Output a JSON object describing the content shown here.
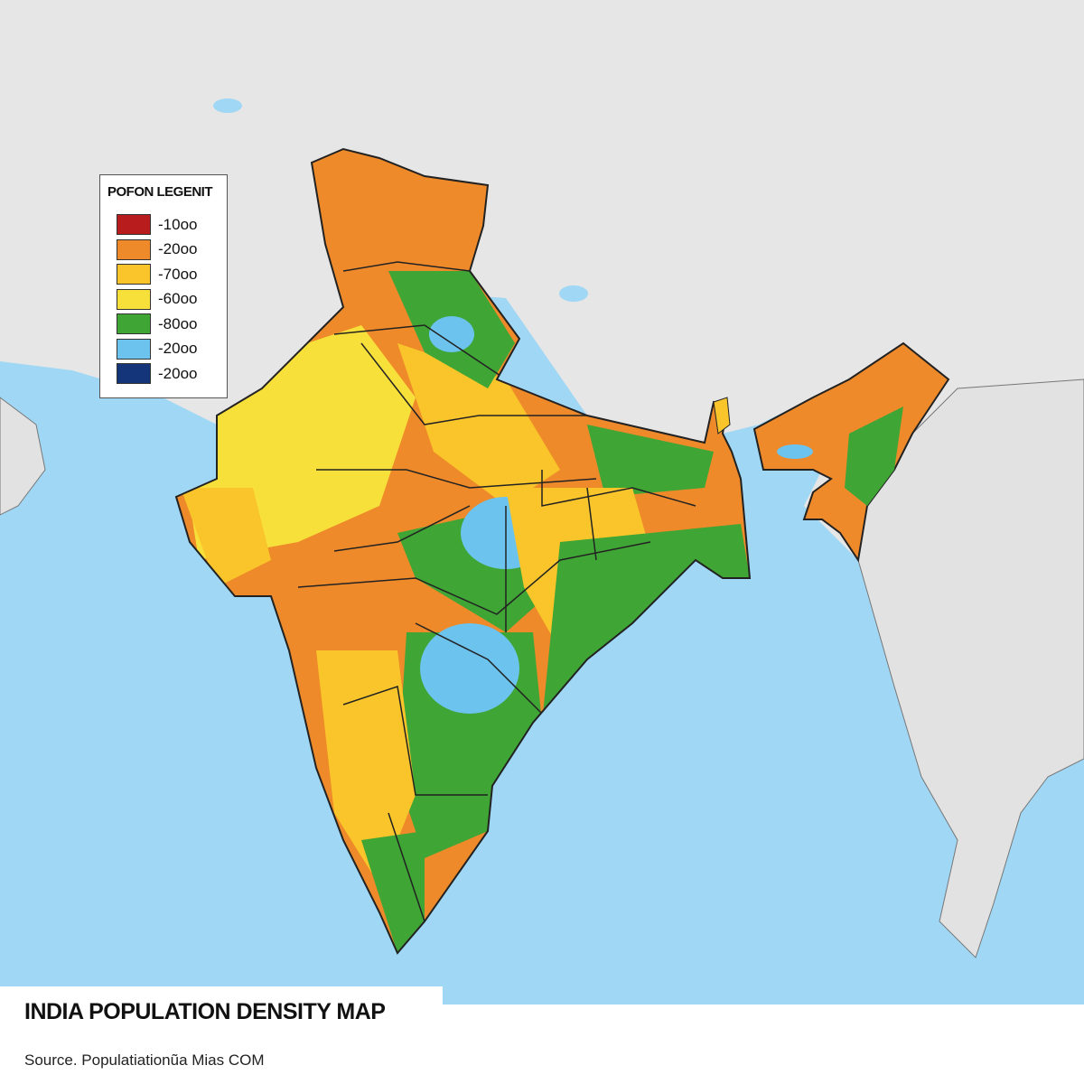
{
  "map": {
    "title": "INDIA POPULATION DENSITY MAP",
    "source": "Source. Populatiationũa Mias COM",
    "colors": {
      "sea": "#9fd7f5",
      "land": "#e4e4e4",
      "border": "#222222"
    }
  },
  "legend": {
    "title": "POFON LEGENIT",
    "items": [
      {
        "label": "-10oo",
        "color": "#b81c1c"
      },
      {
        "label": "-20oo",
        "color": "#ee8a2a"
      },
      {
        "label": "-70oo",
        "color": "#f9c52a"
      },
      {
        "label": "-60oo",
        "color": "#f8e03a"
      },
      {
        "label": "-80oo",
        "color": "#3fa535"
      },
      {
        "label": "-20oo",
        "color": "#6cc3ee"
      },
      {
        "label": "-20oo",
        "color": "#14357a"
      }
    ]
  }
}
